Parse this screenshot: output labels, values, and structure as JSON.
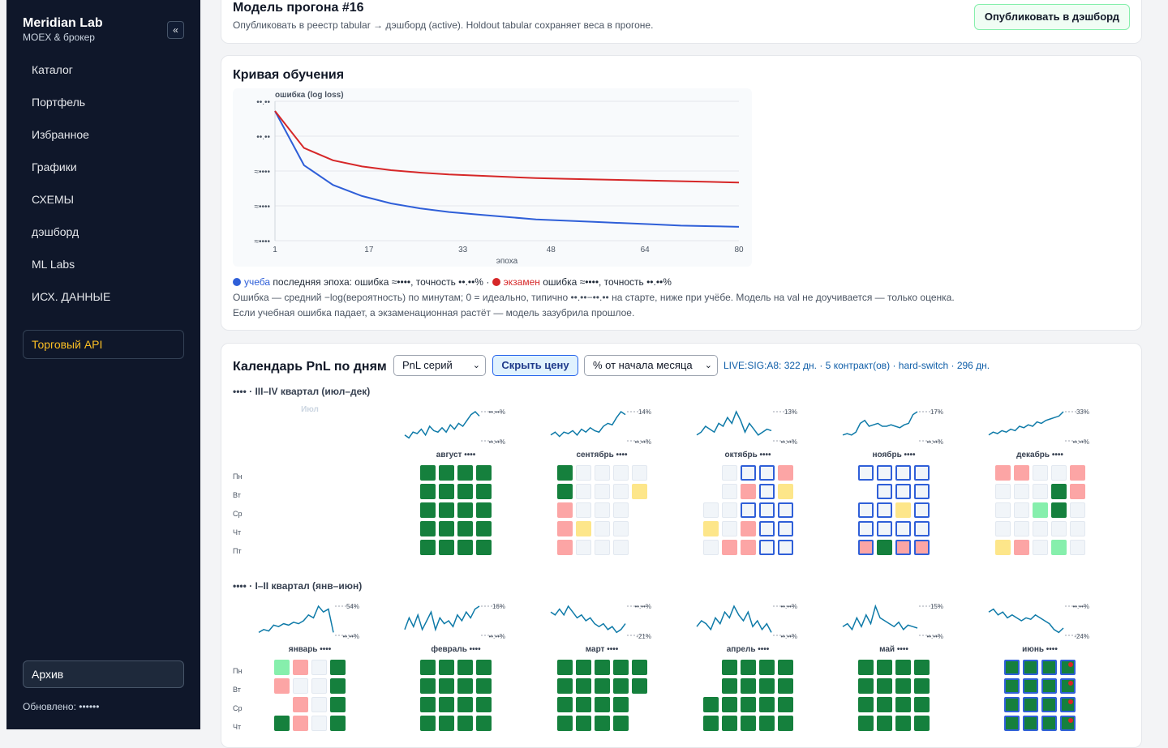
{
  "sidebar": {
    "title": "Meridian Lab",
    "subtitle": "MOEX & брокер",
    "collapse_icon": "«",
    "items": [
      "Каталог",
      "Портфель",
      "Избранное",
      "Графики",
      "СХЕМЫ",
      "дэшборд",
      "ML Labs",
      "ИСХ. ДАННЫЕ"
    ],
    "api_label": "Торговый API",
    "archive_label": "Архив",
    "updated": "Обновлено: ••••••"
  },
  "model": {
    "title": "Модель прогона #16",
    "subtitle": "Опубликовать в реестр tabular → дэшборд (active). Holdout tabular сохраняет веса в прогоне.",
    "publish_label": "Опубликовать в дэшборд"
  },
  "curve": {
    "title": "Кривая обучения",
    "chart_data": {
      "type": "line",
      "ylabel": "ошибка (log loss)",
      "xlabel": "эпоха",
      "x_ticks": [
        "1",
        "17",
        "33",
        "48",
        "64",
        "80"
      ],
      "y_ticks": [
        "••.••",
        "••.••",
        "≈••••",
        "≈••••",
        "≈••••"
      ],
      "xlim": [
        1,
        80
      ],
      "grid": true,
      "series": [
        {
          "name": "учеба",
          "color": "#2f5fd8",
          "values": [
            1.0,
            0.56,
            0.4,
            0.31,
            0.25,
            0.21,
            0.18,
            0.16,
            0.14,
            0.12,
            0.11,
            0.1,
            0.09,
            0.08,
            0.07,
            0.065,
            0.06
          ]
        },
        {
          "name": "экзамен",
          "color": "#d62728",
          "values": [
            1.0,
            0.7,
            0.6,
            0.55,
            0.52,
            0.5,
            0.485,
            0.475,
            0.465,
            0.455,
            0.45,
            0.445,
            0.44,
            0.435,
            0.43,
            0.425,
            0.42
          ]
        }
      ]
    },
    "legend": {
      "train_name": "учеба",
      "train_text": " последняя эпоха: ошибка ≈••••, точность ••.••% · ",
      "test_name": "экзамен",
      "test_text": " ошибка ≈••••, точность ••.••%"
    },
    "note1": "Ошибка — средний −log(вероятность) по минутам; 0 = идеально, типично ••.••−••.•• на старте, ниже при учёбе. Модель на val не доучивается — только оценка.",
    "note2": "Если учебная ошибка падает, а экзаменационная растёт — модель зазубрила прошлое."
  },
  "calendar": {
    "title": "Календарь PnL по дням",
    "select1": "PnL серий",
    "hide_label": "Скрыть цену",
    "select2": "% от начала месяца",
    "live_text": "LIVE:SIG:A8: 322 дн. · 5 контракт(ов) · hard-switch · 296 дн.",
    "day_labels": [
      "Пн",
      "Вт",
      "Ср",
      "Чт",
      "Пт"
    ],
    "q34_title": "•••• · III–IV квартал (июл–дек)",
    "q12_title": "•••• · I–II квартал (янв–июн)",
    "july_label": "Июл",
    "colors": {
      "G": "#15803d",
      "LG": "#86efac",
      "P": "#fca5a5",
      "Y": "#fde68a",
      "E": "#f1f5f9"
    },
    "months_h2": [
      {
        "name": "август ••••",
        "top": "••.••%",
        "bottom": "••.••%",
        "spark": [
          0.2,
          0.1,
          0.3,
          0.25,
          0.4,
          0.2,
          0.5,
          0.35,
          0.3,
          0.45,
          0.3,
          0.55,
          0.4,
          0.6,
          0.5,
          0.7,
          0.9,
          1.0,
          0.85
        ],
        "grid": [
          "GGGG",
          "GGGG",
          "GGGG",
          "GGGG",
          "GGGG"
        ]
      },
      {
        "name": "сентябрь ••••",
        "top": "14%",
        "bottom": "••.••%",
        "spark": [
          0.2,
          0.3,
          0.15,
          0.3,
          0.25,
          0.35,
          0.2,
          0.4,
          0.3,
          0.45,
          0.35,
          0.3,
          0.5,
          0.6,
          0.55,
          0.8,
          1.0,
          0.9
        ],
        "grid": [
          "GEEEE",
          "GEEEY",
          "PEEE.",
          "PYEE.",
          "PEEE."
        ]
      },
      {
        "name": "октябрь ••••",
        "top": "13%",
        "bottom": "••.••%",
        "spark": [
          0.2,
          0.3,
          0.5,
          0.4,
          0.3,
          0.6,
          0.5,
          0.8,
          0.6,
          1.0,
          0.7,
          0.3,
          0.6,
          0.4,
          0.2,
          0.3,
          0.4,
          0.35
        ],
        "grid": [
          ".EBBP",
          ".EPBY",
          "EEBBB",
          "YEPBB",
          "EPPBB"
        ]
      },
      {
        "name": "ноябрь ••••",
        "top": "17%",
        "bottom": "••.••%",
        "spark": [
          0.2,
          0.25,
          0.2,
          0.3,
          0.6,
          0.7,
          0.5,
          0.55,
          0.6,
          0.5,
          0.5,
          0.55,
          0.5,
          0.45,
          0.55,
          0.6,
          0.9,
          1.0
        ],
        "grid": [
          "BBBB",
          ".BBB",
          "BBYB",
          "BBBB",
          "RGRR"
        ]
      },
      {
        "name": "декабрь ••••",
        "top": "33%",
        "bottom": "••.••%",
        "spark": [
          0.2,
          0.3,
          0.25,
          0.35,
          0.3,
          0.4,
          0.35,
          0.5,
          0.45,
          0.55,
          0.5,
          0.65,
          0.6,
          0.7,
          0.75,
          0.8,
          0.85,
          1.0
        ],
        "grid": [
          "PPEEP",
          "EEEGP",
          "EELGE",
          "EEEEE",
          "YPELE"
        ]
      }
    ],
    "months_h1": [
      {
        "name": "январь ••••",
        "top": "54%",
        "bottom": "••.••%",
        "spark": [
          0.1,
          0.2,
          0.15,
          0.35,
          0.3,
          0.4,
          0.35,
          0.45,
          0.4,
          0.5,
          0.7,
          0.6,
          1.0,
          0.8,
          0.9,
          0.1
        ],
        "grid": [
          "LPEG",
          "PEEG",
          ".PEG",
          "GPEG"
        ]
      },
      {
        "name": "февраль ••••",
        "top": "16%",
        "bottom": "••.••%",
        "spark": [
          0.2,
          0.6,
          0.3,
          0.7,
          0.2,
          0.5,
          0.8,
          0.2,
          0.6,
          0.4,
          0.5,
          0.3,
          0.7,
          0.5,
          0.8,
          0.6,
          0.9,
          1.0
        ],
        "grid": [
          "GGGG",
          "GGGG",
          "GGGG",
          "GGGG"
        ]
      },
      {
        "name": "март ••••",
        "top": "••.••%",
        "bottom": "-21%",
        "spark": [
          0.8,
          0.7,
          0.9,
          0.7,
          1.0,
          0.8,
          0.6,
          0.7,
          0.5,
          0.6,
          0.4,
          0.3,
          0.4,
          0.2,
          0.3,
          0.1,
          0.2,
          0.4
        ],
        "grid": [
          "GGGGG",
          "GGGGG",
          "GGGG.",
          "GGGG."
        ]
      },
      {
        "name": "апрель ••••",
        "top": "••.••%",
        "bottom": "••.••%",
        "spark": [
          0.3,
          0.5,
          0.4,
          0.2,
          0.6,
          0.4,
          0.8,
          0.6,
          1.0,
          0.7,
          0.5,
          0.8,
          0.3,
          0.5,
          0.2,
          0.4,
          0.1
        ],
        "grid": [
          ".GGGG",
          ".GGGG",
          "GGGGG",
          "GGGGG"
        ]
      },
      {
        "name": "май ••••",
        "top": "15%",
        "bottom": "••.••%",
        "spark": [
          0.3,
          0.4,
          0.2,
          0.6,
          0.3,
          0.7,
          0.4,
          1.0,
          0.6,
          0.5,
          0.4,
          0.3,
          0.45,
          0.2,
          0.35,
          0.3,
          0.25
        ],
        "grid": [
          "GGGG",
          "GGGG",
          "GGGG",
          "GGGG"
        ]
      },
      {
        "name": "июнь ••••",
        "top": "••.••%",
        "bottom": "-24%",
        "spark": [
          0.8,
          0.9,
          0.7,
          0.8,
          0.6,
          0.7,
          0.6,
          0.5,
          0.6,
          0.55,
          0.7,
          0.6,
          0.5,
          0.4,
          0.2,
          0.1,
          0.25
        ],
        "grid": [
          "BBBR",
          "BBBR",
          "BBBR",
          "BBBR"
        ]
      }
    ]
  }
}
